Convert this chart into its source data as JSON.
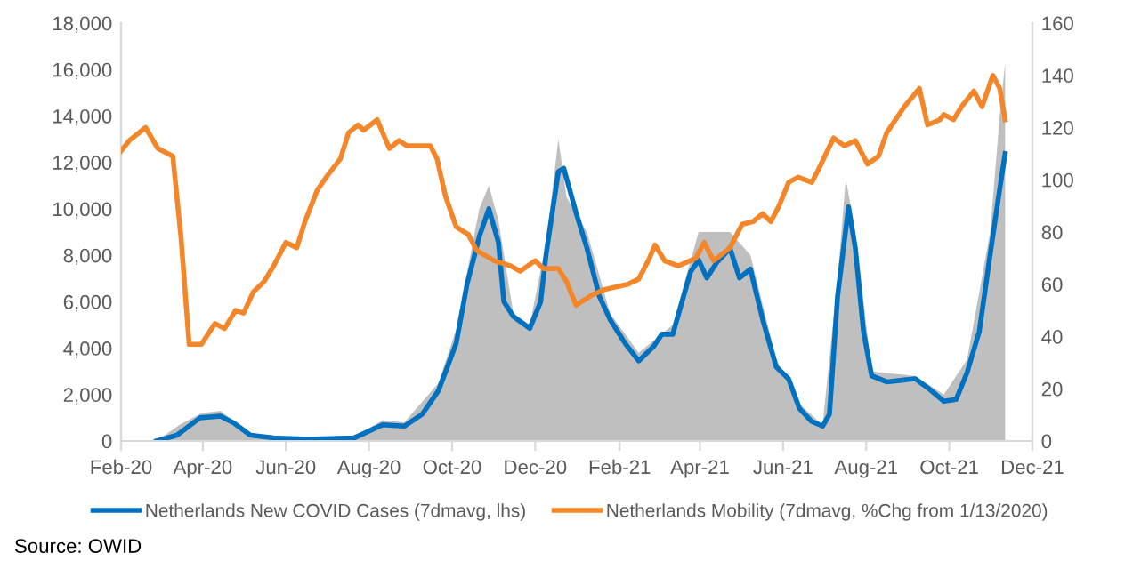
{
  "chart_data": {
    "type": "line",
    "xlim": [
      "2020-02-01",
      "2021-12-01"
    ],
    "xticks": [
      {
        "value": "2020-02-01",
        "label": "Feb-20"
      },
      {
        "value": "2020-04-01",
        "label": "Apr-20"
      },
      {
        "value": "2020-06-01",
        "label": "Jun-20"
      },
      {
        "value": "2020-08-01",
        "label": "Aug-20"
      },
      {
        "value": "2020-10-01",
        "label": "Oct-20"
      },
      {
        "value": "2020-12-01",
        "label": "Dec-20"
      },
      {
        "value": "2021-02-01",
        "label": "Feb-21"
      },
      {
        "value": "2021-04-01",
        "label": "Apr-21"
      },
      {
        "value": "2021-06-01",
        "label": "Jun-21"
      },
      {
        "value": "2021-08-01",
        "label": "Aug-21"
      },
      {
        "value": "2021-10-01",
        "label": "Oct-21"
      },
      {
        "value": "2021-12-01",
        "label": "Dec-21"
      }
    ],
    "ylim": [
      0,
      18000
    ],
    "yticks": [
      {
        "value": 0,
        "label": "0"
      },
      {
        "value": 2000,
        "label": "2,000"
      },
      {
        "value": 4000,
        "label": "4,000"
      },
      {
        "value": 6000,
        "label": "6,000"
      },
      {
        "value": 8000,
        "label": "8,000"
      },
      {
        "value": 10000,
        "label": "10,000"
      },
      {
        "value": 12000,
        "label": "12,000"
      },
      {
        "value": 14000,
        "label": "14,000"
      },
      {
        "value": 16000,
        "label": "16,000"
      },
      {
        "value": 18000,
        "label": "18,000"
      }
    ],
    "y2lim": [
      0,
      160
    ],
    "y2ticks": [
      0,
      20,
      40,
      60,
      80,
      100,
      120,
      140,
      160
    ],
    "grid": false,
    "legend": "bottom",
    "marker": "none",
    "line_style": "solid",
    "series": [
      {
        "type": "area",
        "color": "#bfbfbf",
        "x": [
          "2020-02-27",
          "2020-03-15",
          "2020-03-31",
          "2020-04-14",
          "2020-05-06",
          "2020-06-01",
          "2020-07-21",
          "2020-08-11",
          "2020-08-27",
          "2020-09-21",
          "2020-10-04",
          "2020-10-21",
          "2020-10-28",
          "2020-11-04",
          "2020-11-15",
          "2020-11-27",
          "2020-12-09",
          "2020-12-18",
          "2020-12-24",
          "2021-01-08",
          "2021-01-25",
          "2021-02-15",
          "2021-03-12",
          "2021-03-31",
          "2021-04-23",
          "2021-05-08",
          "2021-05-27",
          "2021-06-13",
          "2021-06-30",
          "2021-07-11",
          "2021-07-17",
          "2021-07-24",
          "2021-08-05",
          "2021-09-06",
          "2021-09-27",
          "2021-10-14",
          "2021-10-31",
          "2021-11-07",
          "2021-11-11"
        ],
        "values": [
          0,
          700,
          1200,
          1300,
          300,
          150,
          150,
          900,
          800,
          2500,
          4800,
          10000,
          11000,
          9500,
          5500,
          5000,
          8500,
          13000,
          10500,
          9000,
          5500,
          3800,
          5000,
          9000,
          9000,
          8000,
          3500,
          1600,
          700,
          7000,
          11300,
          9000,
          3000,
          2800,
          2000,
          3500,
          9000,
          14000,
          16300
        ]
      },
      {
        "name": "Netherlands New COVID Cases (7dmavg, lhs)",
        "color": "#0070c0",
        "x": [
          "2020-02-27",
          "2020-03-13",
          "2020-03-30",
          "2020-04-14",
          "2020-04-24",
          "2020-05-06",
          "2020-05-23",
          "2020-06-17",
          "2020-07-21",
          "2020-08-11",
          "2020-08-27",
          "2020-09-09",
          "2020-09-21",
          "2020-10-04",
          "2020-10-12",
          "2020-10-21",
          "2020-10-28",
          "2020-11-04",
          "2020-11-08",
          "2020-11-15",
          "2020-11-27",
          "2020-12-05",
          "2020-12-09",
          "2020-12-18",
          "2020-12-22",
          "2020-12-31",
          "2021-01-08",
          "2021-01-17",
          "2021-01-25",
          "2021-02-05",
          "2021-02-15",
          "2021-02-26",
          "2021-03-04",
          "2021-03-12",
          "2021-03-25",
          "2021-03-31",
          "2021-04-06",
          "2021-04-13",
          "2021-04-23",
          "2021-04-30",
          "2021-05-08",
          "2021-05-17",
          "2021-05-27",
          "2021-06-05",
          "2021-06-13",
          "2021-06-22",
          "2021-06-30",
          "2021-07-05",
          "2021-07-11",
          "2021-07-19",
          "2021-07-24",
          "2021-07-30",
          "2021-08-05",
          "2021-08-16",
          "2021-09-06",
          "2021-09-15",
          "2021-09-27",
          "2021-10-06",
          "2021-10-14",
          "2021-10-23",
          "2021-10-31",
          "2021-11-07",
          "2021-11-11"
        ],
        "values": [
          0,
          250,
          1000,
          1070,
          770,
          250,
          130,
          80,
          130,
          700,
          640,
          1150,
          2170,
          4200,
          6760,
          8800,
          10000,
          8550,
          6000,
          5360,
          4850,
          6000,
          8040,
          11600,
          11740,
          9830,
          8300,
          6250,
          5230,
          4210,
          3450,
          4080,
          4600,
          4600,
          7280,
          7790,
          7020,
          7660,
          8300,
          7020,
          7400,
          5230,
          3190,
          2680,
          1400,
          840,
          640,
          1150,
          6250,
          10080,
          8300,
          4720,
          2810,
          2550,
          2680,
          2300,
          1710,
          1790,
          2940,
          4720,
          8040,
          10850,
          12380
        ]
      },
      {
        "axis": "y2",
        "name": "Netherlands Mobility (7dmavg, %Chg from 1/13/2020)",
        "color": "#f4862a",
        "x": [
          "2020-02-01",
          "2020-02-07",
          "2020-02-19",
          "2020-02-28",
          "2020-03-10",
          "2020-03-16",
          "2020-03-22",
          "2020-03-31",
          "2020-04-10",
          "2020-04-17",
          "2020-04-25",
          "2020-05-01",
          "2020-05-08",
          "2020-05-16",
          "2020-05-23",
          "2020-06-01",
          "2020-06-09",
          "2020-06-15",
          "2020-06-24",
          "2020-07-02",
          "2020-07-11",
          "2020-07-17",
          "2020-07-24",
          "2020-07-28",
          "2020-08-07",
          "2020-08-16",
          "2020-08-23",
          "2020-08-29",
          "2020-09-07",
          "2020-09-15",
          "2020-09-20",
          "2020-09-26",
          "2020-10-04",
          "2020-10-13",
          "2020-10-19",
          "2020-11-01",
          "2020-11-13",
          "2020-11-20",
          "2020-12-01",
          "2020-12-07",
          "2020-12-18",
          "2020-12-24",
          "2020-12-31",
          "2021-01-06",
          "2021-01-12",
          "2021-01-21",
          "2021-02-07",
          "2021-02-15",
          "2021-02-22",
          "2021-02-27",
          "2021-03-06",
          "2021-03-16",
          "2021-03-29",
          "2021-04-04",
          "2021-04-11",
          "2021-04-23",
          "2021-05-02",
          "2021-05-10",
          "2021-05-17",
          "2021-05-23",
          "2021-05-29",
          "2021-06-05",
          "2021-06-12",
          "2021-06-22",
          "2021-06-27",
          "2021-07-08",
          "2021-07-16",
          "2021-07-24",
          "2021-08-02",
          "2021-08-10",
          "2021-08-16",
          "2021-08-29",
          "2021-09-09",
          "2021-09-15",
          "2021-09-24",
          "2021-09-27",
          "2021-10-04",
          "2021-10-10",
          "2021-10-19",
          "2021-10-25",
          "2021-11-02",
          "2021-11-07",
          "2021-11-11"
        ],
        "values": [
          111,
          115,
          120,
          112,
          109,
          78,
          37,
          37,
          45,
          43,
          50,
          49,
          57,
          61,
          67,
          76,
          74,
          84,
          96,
          102,
          108,
          118,
          121,
          119,
          123,
          112,
          115,
          113,
          113,
          113,
          108,
          94,
          82,
          79,
          73,
          69,
          67,
          65,
          69,
          66,
          66,
          61,
          52,
          54,
          56,
          58,
          60,
          62,
          69,
          75,
          69,
          67,
          70,
          76,
          69,
          74,
          83,
          84,
          87,
          84,
          90,
          99,
          101,
          99,
          104,
          116,
          113,
          115,
          106,
          109,
          118,
          128,
          135,
          121,
          123,
          125,
          123,
          128,
          134,
          128,
          140,
          135,
          123
        ]
      }
    ],
    "annotations": [
      "Source: OWID"
    ]
  }
}
